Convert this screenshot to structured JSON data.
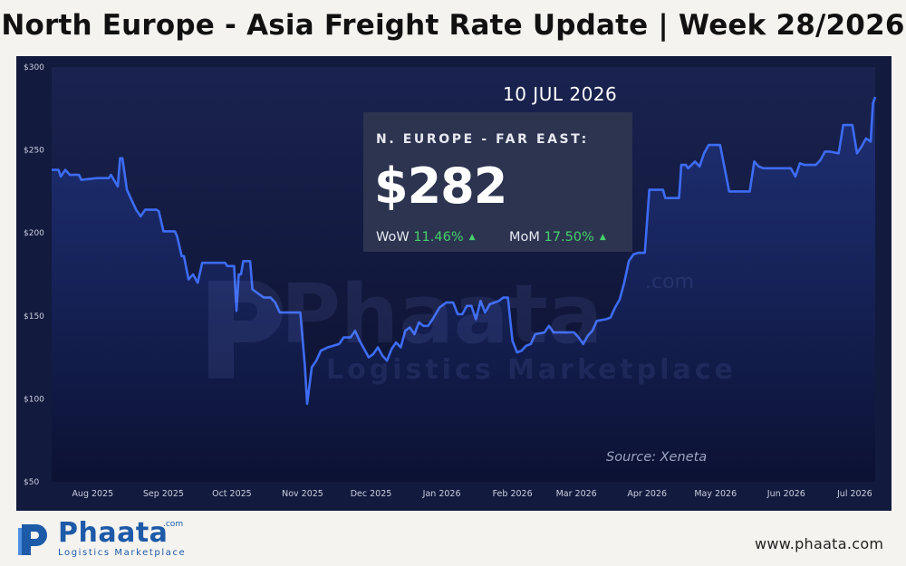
{
  "header": {
    "title": "North Europe - Asia Freight Rate Update | Week 28/2026"
  },
  "readout": {
    "date": "10 JUL 2026",
    "label": "N. EUROPE - FAR EAST:",
    "value": "$282",
    "wow_label": "WoW",
    "wow_value": "11.46%",
    "mom_label": "MoM",
    "mom_value": "17.50%",
    "trend_icon": "triangle-up-icon"
  },
  "source": "Source: Xeneta",
  "watermark": {
    "brand": "Phaata",
    "sub": "Logistics Marketplace",
    "suffix": ".com"
  },
  "footer": {
    "logo_word": "Phaata",
    "logo_suffix": ".com",
    "logo_sub": "Logistics Marketplace",
    "website": "www.phaata.com"
  },
  "colors": {
    "line": "#3d6cf5",
    "panel": "#121a3d",
    "positive": "#47d16b",
    "brand": "#1d5aa8"
  },
  "chart_data": {
    "type": "line",
    "title": "",
    "xlabel": "",
    "ylabel": "",
    "ylim": [
      50,
      300
    ],
    "xlim": [
      "2025-07-14",
      "2026-07-10"
    ],
    "grid": false,
    "y_ticks": [
      {
        "v": 300,
        "label": "$300"
      },
      {
        "v": 250,
        "label": "$250"
      },
      {
        "v": 200,
        "label": "$200"
      },
      {
        "v": 150,
        "label": "$150"
      },
      {
        "v": 100,
        "label": "$100"
      },
      {
        "v": 50,
        "label": "$50"
      }
    ],
    "x_ticks": [
      {
        "d": "2025-08-01",
        "label": "Aug 2025"
      },
      {
        "d": "2025-09-01",
        "label": "Sep 2025"
      },
      {
        "d": "2025-10-01",
        "label": "Oct 2025"
      },
      {
        "d": "2025-11-01",
        "label": "Nov 2025"
      },
      {
        "d": "2025-12-01",
        "label": "Dec 2025"
      },
      {
        "d": "2026-01-01",
        "label": "Jan 2026"
      },
      {
        "d": "2026-02-01",
        "label": "Feb 2026"
      },
      {
        "d": "2026-03-01",
        "label": "Mar 2026"
      },
      {
        "d": "2026-04-01",
        "label": "Apr 2026"
      },
      {
        "d": "2026-05-01",
        "label": "May 2026"
      },
      {
        "d": "2026-06-01",
        "label": "Jun 2026"
      },
      {
        "d": "2026-07-01",
        "label": "Jul 2026"
      }
    ],
    "series": [
      {
        "name": "",
        "points": [
          [
            "2025-07-14",
            238
          ],
          [
            "2025-07-17",
            238
          ],
          [
            "2025-07-18",
            234
          ],
          [
            "2025-07-20",
            238
          ],
          [
            "2025-07-22",
            235
          ],
          [
            "2025-07-26",
            235
          ],
          [
            "2025-07-27",
            232
          ],
          [
            "2025-08-03",
            233
          ],
          [
            "2025-08-08",
            233
          ],
          [
            "2025-08-09",
            235
          ],
          [
            "2025-08-12",
            228
          ],
          [
            "2025-08-13",
            245
          ],
          [
            "2025-08-14",
            245
          ],
          [
            "2025-08-16",
            226
          ],
          [
            "2025-08-18",
            220
          ],
          [
            "2025-08-20",
            214
          ],
          [
            "2025-08-22",
            210
          ],
          [
            "2025-08-24",
            214
          ],
          [
            "2025-08-29",
            214
          ],
          [
            "2025-08-30",
            213
          ],
          [
            "2025-09-01",
            201
          ],
          [
            "2025-09-06",
            201
          ],
          [
            "2025-09-07",
            198
          ],
          [
            "2025-09-09",
            186
          ],
          [
            "2025-09-10",
            186
          ],
          [
            "2025-09-12",
            172
          ],
          [
            "2025-09-14",
            175
          ],
          [
            "2025-09-16",
            170
          ],
          [
            "2025-09-18",
            182
          ],
          [
            "2025-09-28",
            182
          ],
          [
            "2025-09-29",
            180
          ],
          [
            "2025-10-02",
            180
          ],
          [
            "2025-10-03",
            153
          ],
          [
            "2025-10-04",
            175
          ],
          [
            "2025-10-05",
            175
          ],
          [
            "2025-10-06",
            183
          ],
          [
            "2025-10-09",
            183
          ],
          [
            "2025-10-10",
            166
          ],
          [
            "2025-10-13",
            163
          ],
          [
            "2025-10-15",
            161
          ],
          [
            "2025-10-18",
            161
          ],
          [
            "2025-10-20",
            158
          ],
          [
            "2025-10-22",
            152
          ],
          [
            "2025-10-31",
            152
          ],
          [
            "2025-11-02",
            120
          ],
          [
            "2025-11-03",
            97
          ],
          [
            "2025-11-05",
            119
          ],
          [
            "2025-11-07",
            123
          ],
          [
            "2025-11-09",
            129
          ],
          [
            "2025-11-12",
            131
          ],
          [
            "2025-11-17",
            133
          ],
          [
            "2025-11-19",
            137
          ],
          [
            "2025-11-22",
            137
          ],
          [
            "2025-11-24",
            141
          ],
          [
            "2025-11-26",
            135
          ],
          [
            "2025-11-28",
            130
          ],
          [
            "2025-11-30",
            125
          ],
          [
            "2025-12-02",
            127
          ],
          [
            "2025-12-04",
            131
          ],
          [
            "2025-12-06",
            126
          ],
          [
            "2025-12-08",
            123
          ],
          [
            "2025-12-10",
            130
          ],
          [
            "2025-12-12",
            134
          ],
          [
            "2025-12-14",
            131
          ],
          [
            "2025-12-16",
            141
          ],
          [
            "2025-12-18",
            143
          ],
          [
            "2025-12-20",
            139
          ],
          [
            "2025-12-22",
            146
          ],
          [
            "2025-12-24",
            144
          ],
          [
            "2025-12-26",
            144
          ],
          [
            "2025-12-28",
            148
          ],
          [
            "2025-12-31",
            155
          ],
          [
            "2026-01-03",
            158
          ],
          [
            "2026-01-06",
            158
          ],
          [
            "2026-01-08",
            151
          ],
          [
            "2026-01-10",
            151
          ],
          [
            "2026-01-12",
            156
          ],
          [
            "2026-01-14",
            156
          ],
          [
            "2026-01-16",
            148
          ],
          [
            "2026-01-18",
            159
          ],
          [
            "2026-01-20",
            152
          ],
          [
            "2026-01-22",
            157
          ],
          [
            "2026-01-24",
            158
          ],
          [
            "2026-01-26",
            159
          ],
          [
            "2026-01-28",
            161
          ],
          [
            "2026-01-30",
            161
          ],
          [
            "2026-02-01",
            135
          ],
          [
            "2026-02-03",
            128
          ],
          [
            "2026-02-05",
            129
          ],
          [
            "2026-02-07",
            132
          ],
          [
            "2026-02-09",
            133
          ],
          [
            "2026-02-11",
            139
          ],
          [
            "2026-02-15",
            140
          ],
          [
            "2026-02-17",
            144
          ],
          [
            "2026-02-19",
            140
          ],
          [
            "2026-02-28",
            140
          ],
          [
            "2026-03-02",
            137
          ],
          [
            "2026-03-04",
            133
          ],
          [
            "2026-03-06",
            138
          ],
          [
            "2026-03-08",
            141
          ],
          [
            "2026-03-10",
            147
          ],
          [
            "2026-03-14",
            148
          ],
          [
            "2026-03-16",
            149
          ],
          [
            "2026-03-18",
            155
          ],
          [
            "2026-03-20",
            160
          ],
          [
            "2026-03-22",
            170
          ],
          [
            "2026-03-24",
            183
          ],
          [
            "2026-03-26",
            187
          ],
          [
            "2026-03-28",
            188
          ],
          [
            "2026-03-31",
            188
          ],
          [
            "2026-04-02",
            226
          ],
          [
            "2026-04-08",
            226
          ],
          [
            "2026-04-09",
            221
          ],
          [
            "2026-04-15",
            221
          ],
          [
            "2026-04-16",
            241
          ],
          [
            "2026-04-18",
            241
          ],
          [
            "2026-04-19",
            239
          ],
          [
            "2026-04-22",
            243
          ],
          [
            "2026-04-24",
            240
          ],
          [
            "2026-04-26",
            248
          ],
          [
            "2026-04-28",
            253
          ],
          [
            "2026-05-03",
            253
          ],
          [
            "2026-05-07",
            225
          ],
          [
            "2026-05-16",
            225
          ],
          [
            "2026-05-18",
            243
          ],
          [
            "2026-05-20",
            240
          ],
          [
            "2026-05-22",
            239
          ],
          [
            "2026-06-03",
            239
          ],
          [
            "2026-06-05",
            234
          ],
          [
            "2026-06-07",
            242
          ],
          [
            "2026-06-09",
            241
          ],
          [
            "2026-06-14",
            241
          ],
          [
            "2026-06-16",
            244
          ],
          [
            "2026-06-18",
            249
          ],
          [
            "2026-06-20",
            249
          ],
          [
            "2026-06-24",
            248
          ],
          [
            "2026-06-26",
            265
          ],
          [
            "2026-06-30",
            265
          ],
          [
            "2026-07-02",
            248
          ],
          [
            "2026-07-04",
            252
          ],
          [
            "2026-07-06",
            257
          ],
          [
            "2026-07-08",
            255
          ],
          [
            "2026-07-09",
            278
          ],
          [
            "2026-07-10",
            282
          ]
        ]
      }
    ]
  }
}
